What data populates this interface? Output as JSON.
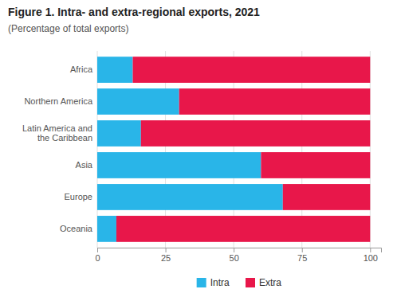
{
  "chart_data": {
    "type": "bar",
    "orientation": "horizontal",
    "stacked": true,
    "title": "Figure 1. Intra- and extra-regional exports, 2021",
    "subtitle": "(Percentage of total exports)",
    "categories": [
      "Africa",
      "Northern America",
      "Latin America and\nthe Caribbean",
      "Asia",
      "Europe",
      "Oceania"
    ],
    "series": [
      {
        "name": "Intra",
        "color": "#29b5e8",
        "values": [
          13,
          30,
          16,
          60,
          68,
          7
        ]
      },
      {
        "name": "Extra",
        "color": "#e8174a",
        "values": [
          87,
          70,
          84,
          40,
          32,
          93
        ]
      }
    ],
    "xlim": [
      0,
      104
    ],
    "xticks": [
      0,
      25,
      50,
      75,
      100
    ],
    "grid": true,
    "legend": "bottom"
  }
}
